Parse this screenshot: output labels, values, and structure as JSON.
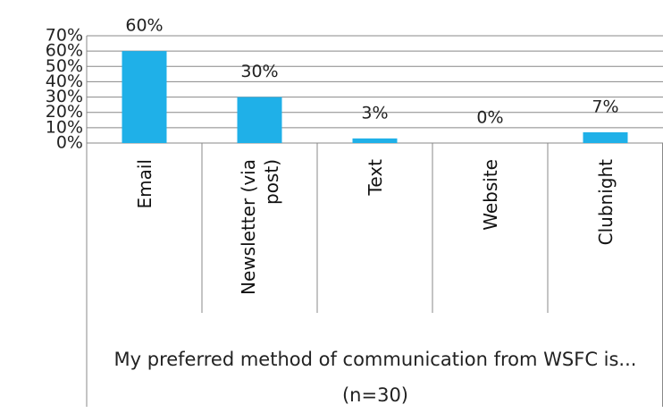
{
  "chart_data": {
    "type": "bar",
    "title": "My preferred method of communication from WSFC is... (n=30)",
    "categories": [
      "Email",
      "Newsletter (via post)",
      "Text",
      "Website",
      "Clubnight"
    ],
    "values": [
      60,
      30,
      3,
      0,
      7
    ],
    "value_labels": [
      "60%",
      "30%",
      "3%",
      "0%",
      "7%"
    ],
    "color": "#1fb0e8",
    "ylim": [
      0,
      70
    ],
    "yticks": [
      {
        "value": 0,
        "label": "0%"
      },
      {
        "value": 10,
        "label": "10%"
      },
      {
        "value": 20,
        "label": "20%"
      },
      {
        "value": 30,
        "label": "30%"
      },
      {
        "value": 40,
        "label": "40%"
      },
      {
        "value": 50,
        "label": "50%"
      },
      {
        "value": 60,
        "label": "60%"
      },
      {
        "value": 70,
        "label": "70%"
      }
    ],
    "grid": true
  }
}
